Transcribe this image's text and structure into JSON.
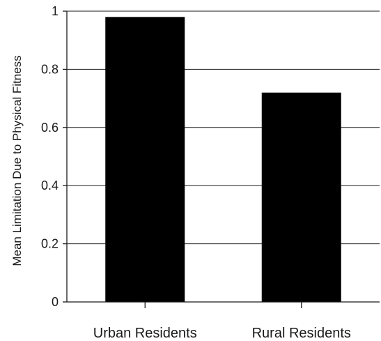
{
  "chart_data": {
    "type": "bar",
    "title": "",
    "xlabel": "",
    "ylabel": "Mean Limitation Due to Physical Fitness",
    "categories": [
      "Urban Residents",
      "Rural Residents"
    ],
    "values": [
      0.98,
      0.72
    ],
    "ylim": [
      0,
      1
    ],
    "yticks": [
      0,
      0.2,
      0.4,
      0.6,
      0.8,
      1
    ],
    "ytick_labels": [
      "0",
      "0.2",
      "0.4",
      "0.6",
      "0.8",
      "1"
    ],
    "grid": true,
    "legend": "none",
    "bar_color": "#000000"
  }
}
